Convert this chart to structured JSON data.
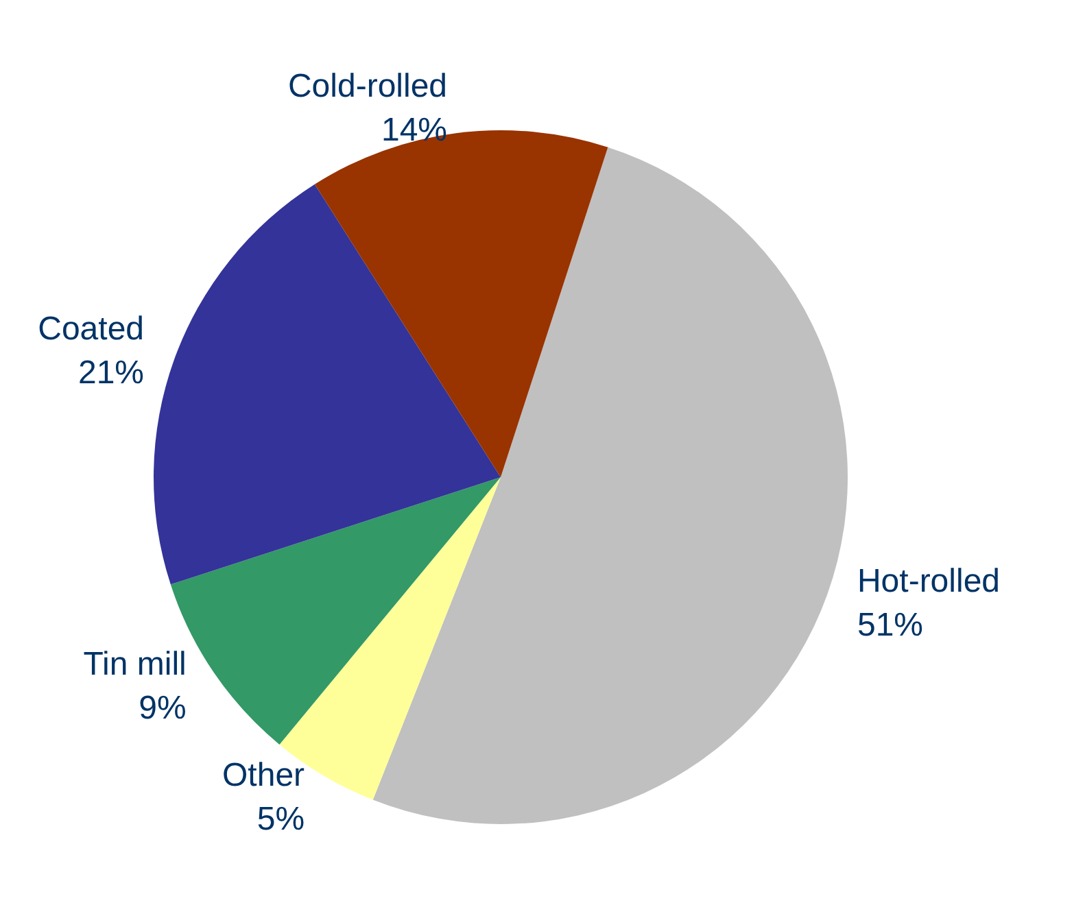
{
  "chart_data": {
    "type": "pie",
    "categories": [
      "Hot-rolled",
      "Other",
      "Tin mill",
      "Coated",
      "Cold-rolled"
    ],
    "values": [
      51,
      5,
      9,
      21,
      14
    ],
    "colors": [
      "#c0c0c0",
      "#ffff99",
      "#339966",
      "#333399",
      "#993300"
    ],
    "value_labels": [
      "51%",
      "5%",
      "9%",
      "21%",
      "14%"
    ]
  }
}
